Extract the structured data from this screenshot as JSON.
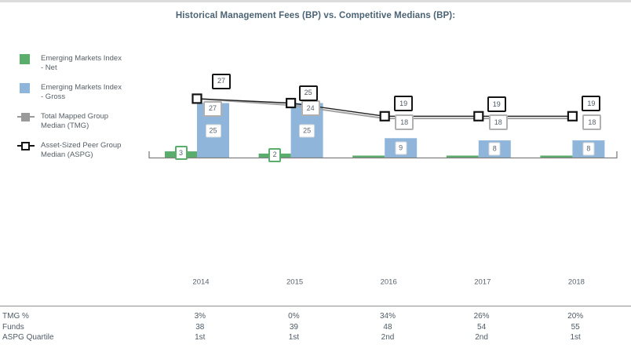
{
  "title": "Historical Management Fees (BP) vs. Competitive Medians (BP):",
  "legend": {
    "items": [
      {
        "icon": "green-square-icon",
        "label_line1": "Emerging Markets Index",
        "label_line2": "- Net",
        "color": "#5aad6b"
      },
      {
        "icon": "blue-square-icon",
        "label_line1": "Emerging Markets Index",
        "label_line2": "- Gross",
        "color": "#8fb6da"
      },
      {
        "icon": "gray-square-line-icon",
        "label_line1": "Total Mapped Group",
        "label_line2": "Median (TMG)",
        "color": "#9a9a9a"
      },
      {
        "icon": "open-square-line-icon",
        "label_line1": "Asset-Sized Peer Group",
        "label_line2": "Median (ASPG)",
        "color": "#141414"
      }
    ]
  },
  "chart_data": {
    "type": "bar",
    "title": "Historical Management Fees (BP) vs. Competitive Medians (BP):",
    "categories": [
      "2014",
      "2015",
      "2016",
      "2017",
      "2018"
    ],
    "series": [
      {
        "name": "Emerging Markets Index - Net",
        "chart_type": "bar",
        "color": "#5aad6b",
        "values": [
          3,
          2,
          0,
          0,
          0
        ]
      },
      {
        "name": "Emerging Markets Index - Gross",
        "chart_type": "bar",
        "color": "#8fb6da",
        "values": [
          25,
          25,
          9,
          8,
          8
        ]
      },
      {
        "name": "Total Mapped Group Median (TMG)",
        "chart_type": "line",
        "color": "#a3a3a3",
        "values": [
          27,
          24,
          18,
          18,
          18
        ]
      },
      {
        "name": "Asset-Sized Peer Group Median (ASPG)",
        "chart_type": "line",
        "color": "#1f1f1f",
        "values": [
          27,
          25,
          19,
          19,
          19
        ]
      }
    ],
    "xlabel": "",
    "ylabel": "",
    "ylim": [
      0,
      32
    ],
    "grid": false,
    "y_axis_visible": false,
    "legend_position": "left",
    "data_labels": true
  },
  "table": {
    "rows": [
      {
        "label": "TMG %",
        "values": [
          "3%",
          "0%",
          "34%",
          "26%",
          "20%"
        ]
      },
      {
        "label": "Funds",
        "values": [
          "38",
          "39",
          "48",
          "54",
          "55"
        ]
      },
      {
        "label": "ASPG Quartile",
        "values": [
          "1st",
          "1st",
          "2nd",
          "2nd",
          "1st"
        ]
      }
    ]
  }
}
